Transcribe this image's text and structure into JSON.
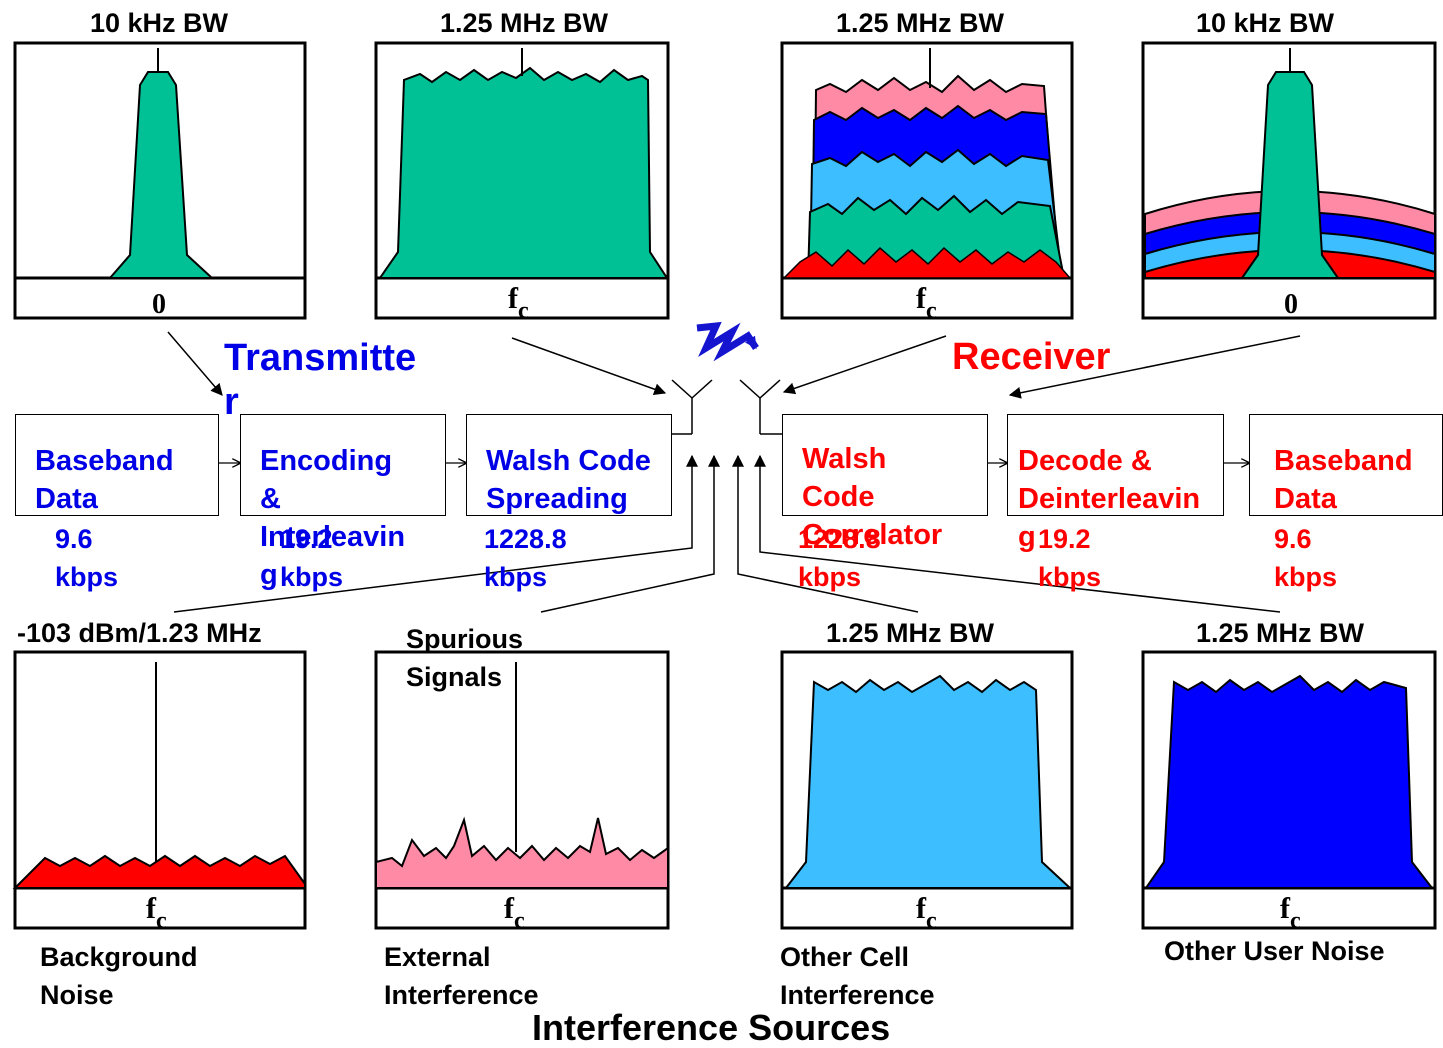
{
  "spectra": {
    "tx_baseband": {
      "title": "10 kHz BW",
      "axis": "0"
    },
    "tx_spread": {
      "title": "1.25 MHz BW",
      "axis": "f",
      "axis_sub": "c"
    },
    "rx_spread": {
      "title": "1.25 MHz BW",
      "axis": "f",
      "axis_sub": "c"
    },
    "rx_baseband": {
      "title": "10 kHz BW",
      "axis": "0"
    },
    "background": {
      "title": "-103 dBm/1.23 MHz",
      "axis": "f",
      "axis_sub": "c",
      "caption": "Background\nNoise"
    },
    "external": {
      "title": "Spurious\nSignals",
      "axis": "f",
      "axis_sub": "c",
      "caption": "External\nInterference"
    },
    "other_cell": {
      "title": "1.25 MHz BW",
      "axis": "f",
      "axis_sub": "c",
      "caption": "Other Cell\nInterference"
    },
    "other_user": {
      "title": "1.25 MHz BW",
      "axis": "f",
      "axis_sub": "c",
      "caption": "Other User Noise"
    }
  },
  "transmitter": {
    "label": "Transmitte\nr",
    "blocks": [
      {
        "label": "Baseband\nData",
        "rate": "9.6\nkbps"
      },
      {
        "label": "Encoding\n&\nInterleavin\ng",
        "rate": "19.2\nkbps"
      },
      {
        "label": "Walsh Code\nSpreading",
        "rate": "1228.8\nkbps"
      }
    ]
  },
  "receiver": {
    "label": "Receiver",
    "blocks": [
      {
        "label": "Walsh\nCode\nCorrelator",
        "rate": "1228.8\nkbps"
      },
      {
        "label": "Decode &\nDeinterleavin\ng",
        "rate": "19.2\nkbps"
      },
      {
        "label": "Baseband\nData",
        "rate": "9.6\nkbps"
      }
    ]
  },
  "footer": {
    "title": "Interference Sources"
  },
  "colors": {
    "green": "#00c096",
    "pink": "#ff8aa6",
    "blue": "#0000ff",
    "light_blue": "#3dbfff",
    "red": "#ff0000",
    "tx_text": "#0000e6",
    "rx_text": "#ff0000"
  }
}
